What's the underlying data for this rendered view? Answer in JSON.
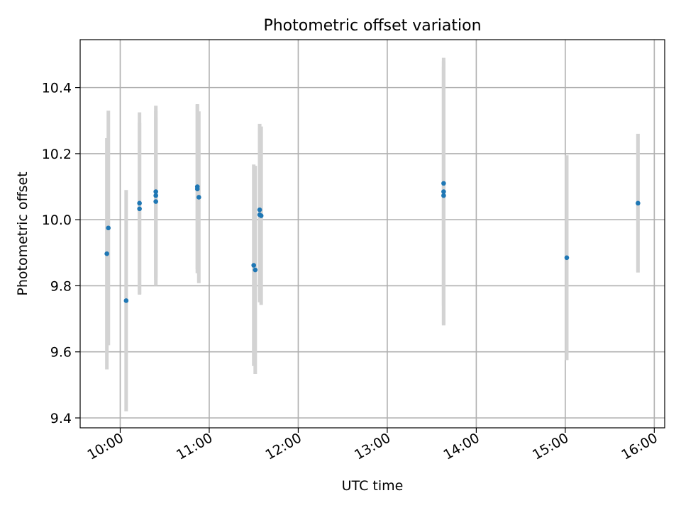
{
  "chart_data": {
    "type": "scatter",
    "title": "Photometric offset variation",
    "xlabel": "UTC time",
    "ylabel": "Photometric offset",
    "xlim": [
      "09:33",
      "16:07"
    ],
    "ylim": [
      9.37,
      10.545
    ],
    "grid": true,
    "x_ticks": [
      "10:00",
      "11:00",
      "12:00",
      "13:00",
      "14:00",
      "15:00",
      "16:00"
    ],
    "y_ticks": [
      9.4,
      9.6,
      9.8,
      10.0,
      10.2,
      10.4
    ],
    "marker_color": "#1f77b4",
    "errorbar_color": "#d3d3d3",
    "points": [
      {
        "x": "09:51",
        "y": 9.897,
        "err": 0.35
      },
      {
        "x": "09:52",
        "y": 9.975,
        "err": 0.355
      },
      {
        "x": "10:04",
        "y": 9.755,
        "err": 0.335
      },
      {
        "x": "10:13",
        "y": 10.05,
        "err": 0.275
      },
      {
        "x": "10:13",
        "y": 10.033,
        "err": 0.26
      },
      {
        "x": "10:24",
        "y": 10.085,
        "err": 0.26
      },
      {
        "x": "10:24",
        "y": 10.073,
        "err": 0.255
      },
      {
        "x": "10:24",
        "y": 10.055,
        "err": 0.255
      },
      {
        "x": "10:52",
        "y": 10.1,
        "err": 0.25
      },
      {
        "x": "10:52",
        "y": 10.093,
        "err": 0.255
      },
      {
        "x": "10:53",
        "y": 10.068,
        "err": 0.26
      },
      {
        "x": "11:30",
        "y": 9.862,
        "err": 0.305
      },
      {
        "x": "11:31",
        "y": 9.848,
        "err": 0.315
      },
      {
        "x": "11:34",
        "y": 10.03,
        "err": 0.26
      },
      {
        "x": "11:34",
        "y": 10.015,
        "err": 0.265
      },
      {
        "x": "11:35",
        "y": 10.012,
        "err": 0.27
      },
      {
        "x": "13:38",
        "y": 10.11,
        "err": 0.37
      },
      {
        "x": "13:38",
        "y": 10.085,
        "err": 0.405
      },
      {
        "x": "13:38",
        "y": 10.073,
        "err": 0.39
      },
      {
        "x": "15:01",
        "y": 9.885,
        "err": 0.31
      },
      {
        "x": "15:49",
        "y": 10.05,
        "err": 0.21
      }
    ]
  }
}
